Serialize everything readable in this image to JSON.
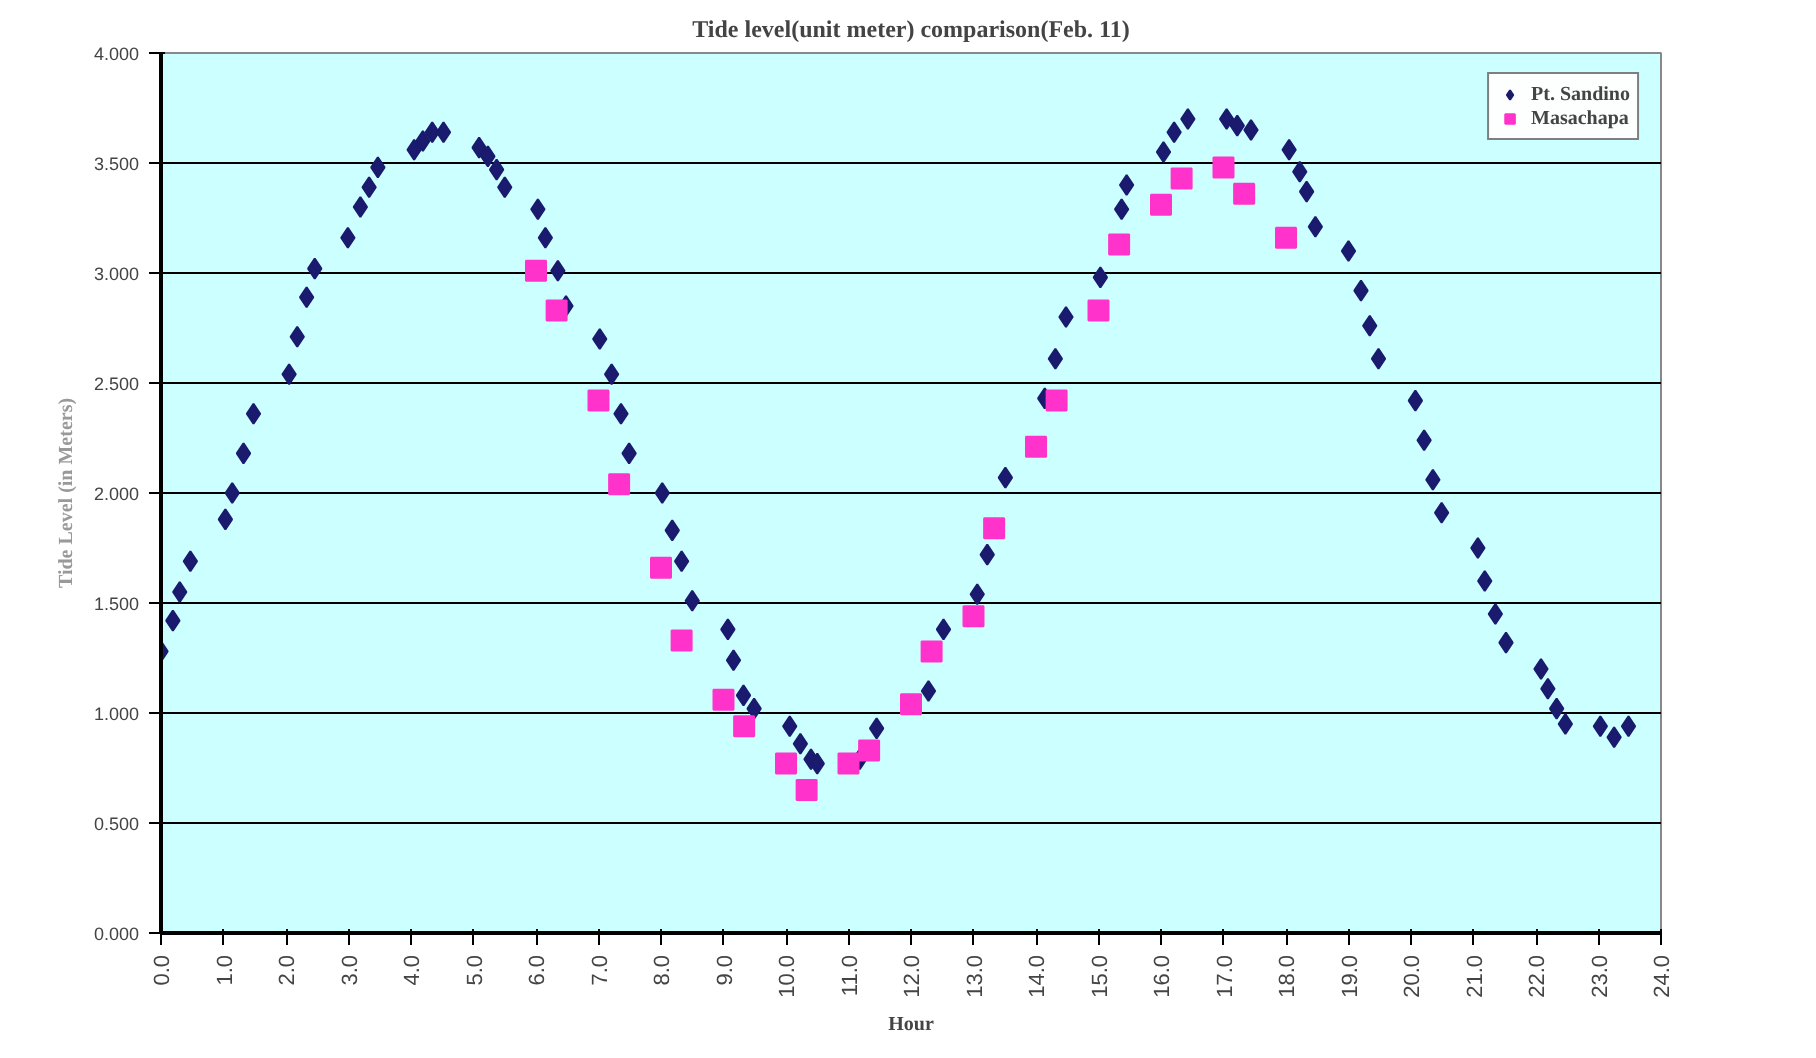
{
  "chart_data": {
    "type": "scatter",
    "title": "Tide level(unit meter) comparison(Feb. 11)",
    "xlabel": "Hour",
    "ylabel": "Tide Level (in Meters)",
    "xlim": [
      0,
      24
    ],
    "ylim": [
      0,
      4
    ],
    "xticks": [
      {
        "value": 0,
        "label": "0.0"
      },
      {
        "value": 1,
        "label": "1.0"
      },
      {
        "value": 2,
        "label": "2.0"
      },
      {
        "value": 3,
        "label": "3.0"
      },
      {
        "value": 4,
        "label": "4.0"
      },
      {
        "value": 5,
        "label": "5.0"
      },
      {
        "value": 6,
        "label": "6.0"
      },
      {
        "value": 7,
        "label": "7.0"
      },
      {
        "value": 8,
        "label": "8.0"
      },
      {
        "value": 9,
        "label": "9.0"
      },
      {
        "value": 10,
        "label": "10.0"
      },
      {
        "value": 11,
        "label": "11.0"
      },
      {
        "value": 12,
        "label": "12.0"
      },
      {
        "value": 13,
        "label": "13.0"
      },
      {
        "value": 14,
        "label": "14.0"
      },
      {
        "value": 15,
        "label": "15.0"
      },
      {
        "value": 16,
        "label": "16.0"
      },
      {
        "value": 17,
        "label": "17.0"
      },
      {
        "value": 18,
        "label": "18.0"
      },
      {
        "value": 19,
        "label": "19.0"
      },
      {
        "value": 20,
        "label": "20.0"
      },
      {
        "value": 21,
        "label": "21.0"
      },
      {
        "value": 22,
        "label": "22.0"
      },
      {
        "value": 23,
        "label": "23.0"
      },
      {
        "value": 24,
        "label": "24.0"
      }
    ],
    "yticks": [
      {
        "value": 0,
        "label": "0.000"
      },
      {
        "value": 0.5,
        "label": "0.500"
      },
      {
        "value": 1,
        "label": "1.000"
      },
      {
        "value": 1.5,
        "label": "1.500"
      },
      {
        "value": 2,
        "label": "2.000"
      },
      {
        "value": 2.5,
        "label": "2.500"
      },
      {
        "value": 3,
        "label": "3.000"
      },
      {
        "value": 3.5,
        "label": "3.500"
      },
      {
        "value": 4,
        "label": "4.000"
      }
    ],
    "grid": "y",
    "legend": "top right",
    "series": [
      {
        "name": "Pt. Sandino",
        "color": "#1a1a6e",
        "marker": "diamond",
        "x": [
          0,
          0.19,
          0.3,
          0.47,
          1.03,
          1.14,
          1.32,
          1.48,
          2.05,
          2.18,
          2.33,
          2.46,
          2.99,
          3.19,
          3.33,
          3.47,
          4.05,
          4.19,
          4.34,
          4.52,
          5.09,
          5.23,
          5.37,
          5.5,
          6.03,
          6.15,
          6.35,
          6.48,
          7.02,
          7.21,
          7.36,
          7.49,
          8.02,
          8.18,
          8.33,
          8.5,
          9.07,
          9.16,
          9.32,
          9.49,
          10.06,
          10.23,
          10.4,
          10.5,
          11.18,
          11.45,
          12.28,
          12.52,
          13.06,
          13.22,
          13.51,
          14.14,
          14.31,
          14.48,
          15.03,
          15.29,
          15.37,
          15.45,
          16.04,
          16.21,
          16.43,
          17.05,
          17.22,
          17.44,
          18.05,
          18.22,
          18.33,
          18.47,
          19.0,
          19.2,
          19.34,
          19.48,
          20.07,
          20.21,
          20.35,
          20.49,
          21.07,
          21.18,
          21.35,
          21.52,
          22.08,
          22.19,
          22.33,
          22.47,
          23.03,
          23.25,
          23.48
        ],
        "values": [
          1.28,
          1.42,
          1.55,
          1.69,
          1.88,
          2.0,
          2.18,
          2.36,
          2.54,
          2.71,
          2.89,
          3.02,
          3.16,
          3.3,
          3.39,
          3.48,
          3.56,
          3.6,
          3.64,
          3.64,
          3.57,
          3.53,
          3.47,
          3.39,
          3.29,
          3.16,
          3.01,
          2.85,
          2.7,
          2.54,
          2.36,
          2.18,
          2.0,
          1.83,
          1.69,
          1.51,
          1.38,
          1.24,
          1.08,
          1.02,
          0.94,
          0.86,
          0.79,
          0.77,
          0.79,
          0.93,
          1.1,
          1.38,
          1.54,
          1.72,
          2.07,
          2.43,
          2.61,
          2.8,
          2.98,
          null,
          3.29,
          3.4,
          3.55,
          3.64,
          3.7,
          3.7,
          3.67,
          3.65,
          3.56,
          3.46,
          3.37,
          3.21,
          3.1,
          2.92,
          2.76,
          2.61,
          2.42,
          2.24,
          2.06,
          1.91,
          1.75,
          1.6,
          1.45,
          1.32,
          1.2,
          1.11,
          1.02,
          0.95,
          0.94,
          0.89,
          0.94
        ]
      },
      {
        "name": "Masachapa",
        "color": "#ff33cc",
        "marker": "square",
        "x": [
          6,
          6.33,
          7,
          7.33,
          8,
          8.33,
          9,
          9.33,
          10,
          10.33,
          11,
          11.33,
          12,
          12.33,
          13,
          13.33,
          14,
          14.33,
          15,
          15.33,
          16,
          16.33,
          17,
          17.33,
          18
        ],
        "values": [
          3.01,
          2.83,
          2.42,
          2.04,
          1.66,
          1.33,
          1.06,
          0.94,
          0.77,
          0.65,
          0.77,
          0.83,
          1.04,
          1.28,
          1.44,
          1.84,
          2.21,
          2.42,
          2.83,
          3.13,
          3.31,
          3.43,
          3.48,
          3.36,
          3.16
        ]
      }
    ]
  }
}
